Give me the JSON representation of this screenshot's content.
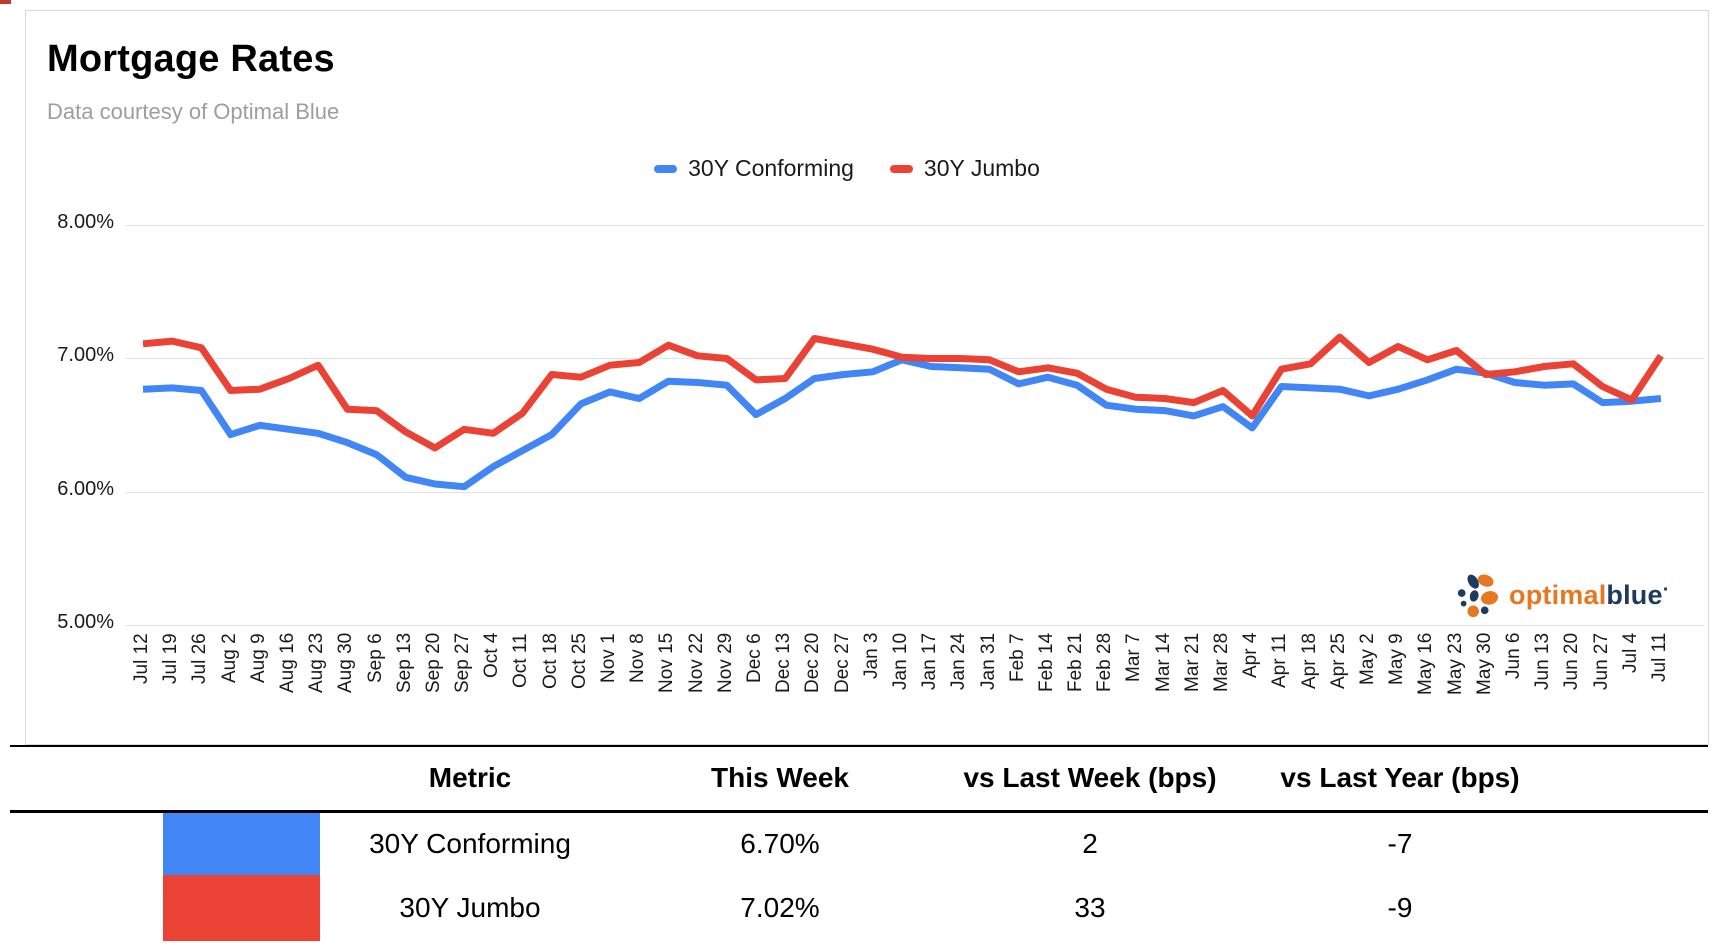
{
  "chart_data": {
    "type": "line",
    "title": "Mortgage Rates",
    "subtitle": "Data courtesy of Optimal Blue",
    "x": [
      "Jul 12",
      "Jul 19",
      "Jul 26",
      "Aug 2",
      "Aug 9",
      "Aug 16",
      "Aug 23",
      "Aug 30",
      "Sep 6",
      "Sep 13",
      "Sep 20",
      "Sep 27",
      "Oct 4",
      "Oct 11",
      "Oct 18",
      "Oct 25",
      "Nov 1",
      "Nov 8",
      "Nov 15",
      "Nov 22",
      "Nov 29",
      "Dec 6",
      "Dec 13",
      "Dec 20",
      "Dec 27",
      "Jan 3",
      "Jan 10",
      "Jan 17",
      "Jan 24",
      "Jan 31",
      "Feb 7",
      "Feb 14",
      "Feb 21",
      "Feb 28",
      "Mar 7",
      "Mar 14",
      "Mar 21",
      "Mar 28",
      "Apr 4",
      "Apr 11",
      "Apr 18",
      "Apr 25",
      "May 2",
      "May 9",
      "May 16",
      "May 23",
      "May 30",
      "Jun 6",
      "Jun 13",
      "Jun 20",
      "Jun 27",
      "Jul 4",
      "Jul 11"
    ],
    "series": [
      {
        "name": "30Y Conforming",
        "color": "#4285F4",
        "values": [
          6.77,
          6.78,
          6.76,
          6.43,
          6.5,
          6.47,
          6.44,
          6.37,
          6.28,
          6.11,
          6.06,
          6.04,
          6.19,
          6.31,
          6.43,
          6.66,
          6.75,
          6.7,
          6.83,
          6.82,
          6.8,
          6.58,
          6.7,
          6.85,
          6.88,
          6.9,
          6.99,
          6.94,
          6.93,
          6.92,
          6.81,
          6.86,
          6.8,
          6.65,
          6.62,
          6.61,
          6.57,
          6.64,
          6.48,
          6.79,
          6.78,
          6.77,
          6.72,
          6.77,
          6.84,
          6.92,
          6.89,
          6.82,
          6.8,
          6.81,
          6.67,
          6.68,
          6.7
        ]
      },
      {
        "name": "30Y Jumbo",
        "color": "#EA4335",
        "values": [
          7.11,
          7.13,
          7.08,
          6.76,
          6.77,
          6.85,
          6.95,
          6.62,
          6.61,
          6.45,
          6.33,
          6.47,
          6.44,
          6.59,
          6.88,
          6.86,
          6.95,
          6.97,
          7.1,
          7.02,
          7.0,
          6.84,
          6.85,
          7.15,
          7.11,
          7.07,
          7.01,
          7.0,
          7.0,
          6.99,
          6.9,
          6.93,
          6.89,
          6.77,
          6.71,
          6.7,
          6.67,
          6.76,
          6.57,
          6.92,
          6.96,
          7.16,
          6.97,
          7.09,
          6.99,
          7.06,
          6.88,
          6.9,
          6.94,
          6.96,
          6.79,
          6.69,
          7.02
        ]
      }
    ],
    "yticks": [
      "8.00%",
      "7.00%",
      "6.00%",
      "5.00%"
    ],
    "ylim": [
      5.0,
      8.0
    ],
    "grid": true,
    "legend_position": "top"
  },
  "logo": {
    "part1": "optimal",
    "part2": "blue",
    "dot": "·"
  },
  "table": {
    "headers": [
      "Metric",
      "This Week",
      "vs Last Week (bps)",
      "vs Last Year (bps)"
    ],
    "rows": [
      {
        "color": "#4285F4",
        "metric": "30Y Conforming",
        "this_week": "6.70%",
        "vs_last_week": "2",
        "vs_last_year": "-7"
      },
      {
        "color": "#EA4335",
        "metric": "30Y Jumbo",
        "this_week": "7.02%",
        "vs_last_week": "33",
        "vs_last_year": "-9"
      }
    ]
  }
}
